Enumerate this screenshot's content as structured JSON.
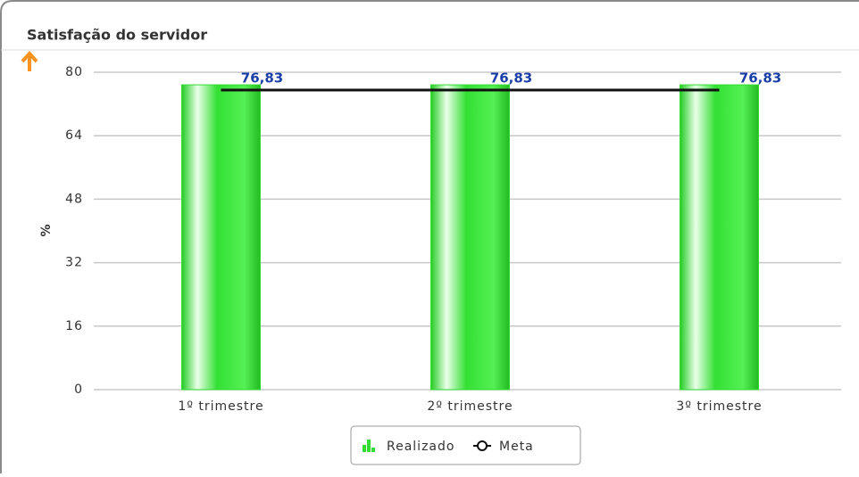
{
  "chart_data": {
    "type": "bar",
    "title": "Satisfação do servidor",
    "y_label": "%",
    "categories": [
      "1º trimestre",
      "2º trimestre",
      "3º trimestre"
    ],
    "series": [
      {
        "name": "Realizado",
        "type": "bar",
        "color": "#33dd33",
        "values": [
          76.83,
          76.83,
          76.83
        ],
        "value_labels": [
          "76,83",
          "76,83",
          "76,83"
        ]
      },
      {
        "name": "Meta",
        "type": "line",
        "color": "#111111",
        "values": [
          75.5,
          75.5,
          75.5
        ]
      }
    ],
    "ylim": [
      0,
      80
    ],
    "yticks": [
      0,
      16,
      32,
      48,
      64,
      80
    ],
    "grid": true,
    "legend": "bottom"
  }
}
